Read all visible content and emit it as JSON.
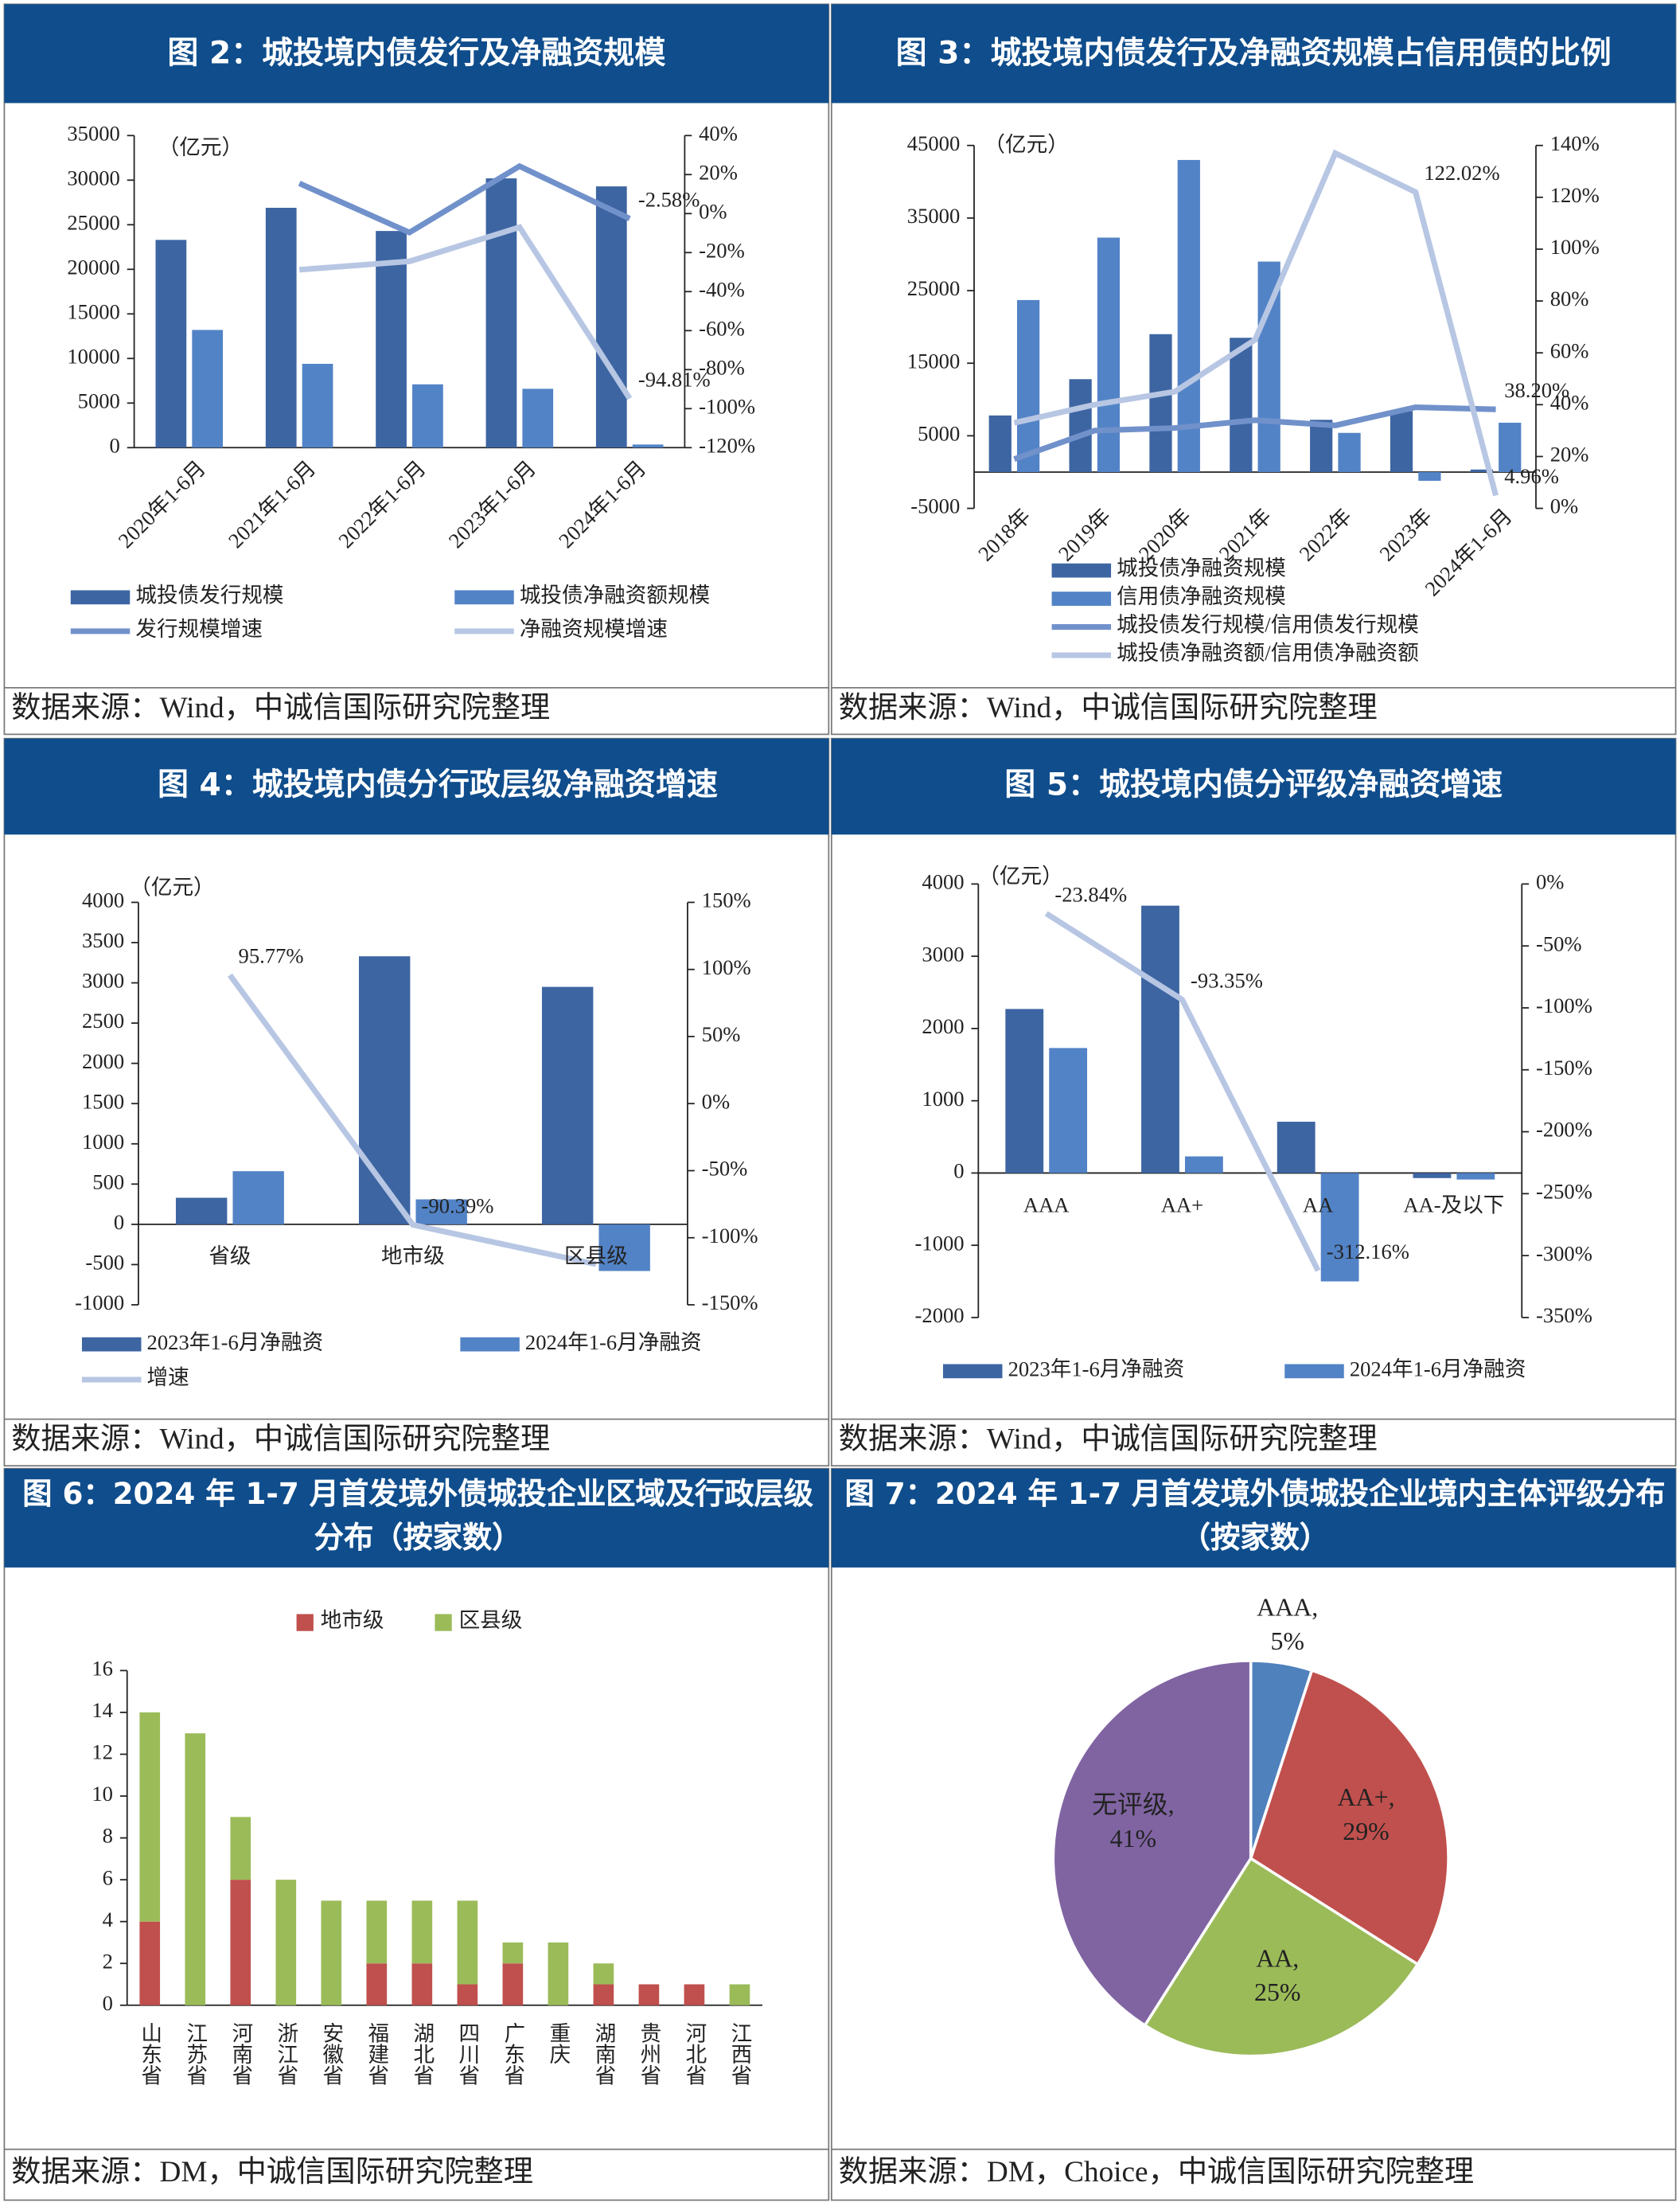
{
  "chart_data": [
    {
      "type": "bar",
      "title": "图 2：城投境内债发行及净融资规模",
      "unit": "（亿元）",
      "source": "数据来源：Wind，中诚信国际研究院整理",
      "categories": [
        "2020年1-6月",
        "2021年1-6月",
        "2022年1-6月",
        "2023年1-6月",
        "2024年1-6月"
      ],
      "ylim": [
        0,
        35000
      ],
      "yticks": [
        0,
        5000,
        10000,
        15000,
        20000,
        25000,
        30000,
        35000
      ],
      "y2lim": [
        -120,
        40
      ],
      "y2ticks": [
        {
          "value": -120,
          "label": "-120%"
        },
        {
          "value": -100,
          "label": "-100%"
        },
        {
          "value": -80,
          "label": "-80%"
        },
        {
          "value": -60,
          "label": "-60%"
        },
        {
          "value": -40,
          "label": "-40%"
        },
        {
          "value": -20,
          "label": "-20%"
        },
        {
          "value": 0,
          "label": "0%"
        },
        {
          "value": 20,
          "label": "20%"
        },
        {
          "value": 40,
          "label": "40%"
        }
      ],
      "series": [
        {
          "name": "城投债发行规模",
          "color": "#3d65a2",
          "values": [
            23300,
            26900,
            24300,
            30200,
            29300
          ]
        },
        {
          "name": "城投债净融资额规模",
          "color": "#5283c6",
          "values": [
            13200,
            9400,
            7100,
            6600,
            350
          ]
        },
        {
          "name": "发行规模增速",
          "color": "#7191cb",
          "type": "line",
          "axis": "y2",
          "values": [
            null,
            15.5,
            -9.7,
            24.3,
            -2.58
          ],
          "value_labels": [
            null,
            null,
            null,
            null,
            "-2.58%"
          ]
        },
        {
          "name": "净融资规模增速",
          "color": "#b7c6e3",
          "type": "line",
          "axis": "y2",
          "values": [
            null,
            -28.8,
            -24.5,
            -7.0,
            -94.81
          ],
          "value_labels": [
            null,
            null,
            null,
            null,
            "-94.81%"
          ]
        }
      ]
    },
    {
      "type": "bar",
      "title": "图 3：城投境内债发行及净融资规模占信用债的比例",
      "unit": "（亿元）",
      "source": "数据来源：Wind，中诚信国际研究院整理",
      "categories": [
        "2018年",
        "2019年",
        "2020年",
        "2021年",
        "2022年",
        "2023年",
        "2024年1-6月"
      ],
      "ylim": [
        -5000,
        45000
      ],
      "yticks": [
        -5000,
        5000,
        15000,
        25000,
        35000,
        45000
      ],
      "y2lim": [
        0,
        140
      ],
      "y2ticks": [
        {
          "value": 0,
          "label": "0%"
        },
        {
          "value": 20,
          "label": "20%"
        },
        {
          "value": 40,
          "label": "40%"
        },
        {
          "value": 60,
          "label": "60%"
        },
        {
          "value": 80,
          "label": "80%"
        },
        {
          "value": 100,
          "label": "100%"
        },
        {
          "value": 120,
          "label": "120%"
        },
        {
          "value": 140,
          "label": "140%"
        }
      ],
      "series": [
        {
          "name": "城投债净融资规模",
          "color": "#3d65a2",
          "values": [
            7800,
            12800,
            19000,
            18500,
            7200,
            8400,
            350
          ]
        },
        {
          "name": "信用债净融资规模",
          "color": "#5283c6",
          "values": [
            23700,
            32300,
            43000,
            29000,
            5400,
            -1200,
            6800
          ]
        },
        {
          "name": "城投债发行规模/信用债发行规模",
          "color": "#7191cb",
          "type": "line",
          "axis": "y2",
          "values": [
            19,
            30,
            31,
            34,
            32,
            39,
            38.2
          ],
          "value_labels": [
            null,
            null,
            null,
            null,
            null,
            null,
            "38.20%"
          ]
        },
        {
          "name": "城投债净融资额/信用债净融资额",
          "color": "#b7c6e3",
          "type": "line",
          "axis": "y2",
          "values": [
            33,
            40,
            45,
            65,
            137,
            122.02,
            4.96
          ],
          "value_labels": [
            null,
            null,
            null,
            null,
            null,
            "122.02%",
            "4.96%"
          ]
        }
      ]
    },
    {
      "type": "bar",
      "title": "图 4：城投境内债分行政层级净融资增速",
      "unit": "（亿元）",
      "source": "数据来源：Wind，中诚信国际研究院整理",
      "categories": [
        "省级",
        "地市级",
        "区县级"
      ],
      "ylim": [
        -1000,
        4000
      ],
      "yticks": [
        -1000,
        -500,
        0,
        500,
        1000,
        1500,
        2000,
        2500,
        3000,
        3500,
        4000
      ],
      "y2lim": [
        -150,
        150
      ],
      "y2ticks": [
        {
          "value": -150,
          "label": "-150%"
        },
        {
          "value": -100,
          "label": "-100%"
        },
        {
          "value": -50,
          "label": "-50%"
        },
        {
          "value": 0,
          "label": "0%"
        },
        {
          "value": 50,
          "label": "50%"
        },
        {
          "value": 100,
          "label": "100%"
        },
        {
          "value": 150,
          "label": "150%"
        }
      ],
      "series": [
        {
          "name": "2023年1-6月净融资",
          "color": "#3d65a2",
          "values": [
            330,
            3330,
            2950
          ]
        },
        {
          "name": "2024年1-6月净融资",
          "color": "#5283c6",
          "values": [
            660,
            310,
            -580
          ]
        },
        {
          "name": "增速",
          "color": "#b7c6e3",
          "type": "line",
          "axis": "y2",
          "values": [
            95.77,
            -90.39,
            -119.7
          ],
          "value_labels": [
            "95.77%",
            "-90.39%",
            null
          ]
        }
      ]
    },
    {
      "type": "bar",
      "title": "图 5：城投境内债分评级净融资增速",
      "unit": "（亿元）",
      "source": "数据来源：Wind，中诚信国际研究院整理",
      "categories": [
        "AAA",
        "AA+",
        "AA",
        "AA-及以下"
      ],
      "ylim": [
        -2000,
        4000
      ],
      "yticks": [
        -2000,
        -1000,
        0,
        1000,
        2000,
        3000,
        4000
      ],
      "y2lim": [
        -350,
        0
      ],
      "y2ticks": [
        {
          "value": -350,
          "label": "-350%"
        },
        {
          "value": -300,
          "label": "-300%"
        },
        {
          "value": -250,
          "label": "-250%"
        },
        {
          "value": -200,
          "label": "-200%"
        },
        {
          "value": -150,
          "label": "-150%"
        },
        {
          "value": -100,
          "label": "-100%"
        },
        {
          "value": -50,
          "label": "-50%"
        },
        {
          "value": 0,
          "label": "0%"
        }
      ],
      "series": [
        {
          "name": "2023年1-6月净融资",
          "color": "#3d65a2",
          "values": [
            2270,
            3700,
            710,
            -70
          ]
        },
        {
          "name": "2024年1-6月净融资",
          "color": "#5283c6",
          "values": [
            1730,
            230,
            -1500,
            -90
          ]
        },
        {
          "name": "增速",
          "color": "#b7c6e3",
          "type": "line",
          "axis": "y2",
          "legend": false,
          "values": [
            -23.84,
            -93.35,
            -312.16,
            null
          ],
          "value_labels": [
            "-23.84%",
            "-93.35%",
            "-312.16%",
            null
          ]
        }
      ]
    },
    {
      "type": "bar",
      "stacked": true,
      "title": "图 6：2024 年 1-7 月首发境外债城投企业区域及行政层级分布（按家数）",
      "source": "数据来源：DM，中诚信国际研究院整理",
      "categories": [
        "山东省",
        "江苏省",
        "河南省",
        "浙江省",
        "安徽省",
        "福建省",
        "湖北省",
        "四川省",
        "广东省",
        "重庆",
        "湖南省",
        "贵州省",
        "河北省",
        "江西省"
      ],
      "ylim": [
        0,
        16
      ],
      "yticks": [
        0,
        2,
        4,
        6,
        8,
        10,
        12,
        14,
        16
      ],
      "series": [
        {
          "name": "地市级",
          "color": "#c0504d",
          "values": [
            4,
            0,
            6,
            0,
            0,
            2,
            2,
            1,
            2,
            0,
            1,
            1,
            1,
            0
          ]
        },
        {
          "name": "区县级",
          "color": "#9bbb59",
          "values": [
            10,
            13,
            3,
            6,
            5,
            3,
            3,
            4,
            1,
            3,
            1,
            0,
            0,
            1
          ]
        }
      ]
    },
    {
      "type": "pie",
      "title": "图 7：2024 年 1-7 月首发境外债城投企业境内主体评级分布（按家数）",
      "source": "数据来源：DM，Choice，中诚信国际研究院整理",
      "categories": [
        "AAA,",
        "AA+,",
        "AA,",
        "无评级,"
      ],
      "values": [
        5,
        29,
        25,
        41
      ],
      "value_labels": [
        "5%",
        "29%",
        "25%",
        "41%"
      ],
      "colors": [
        "#4f81bd",
        "#c0504d",
        "#9bbb59",
        "#8064a2"
      ]
    }
  ]
}
